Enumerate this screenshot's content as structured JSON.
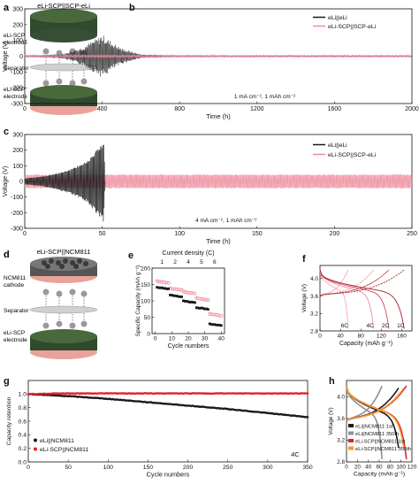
{
  "colors": {
    "black": "#1a1a1a",
    "pink": "#ee8c9d",
    "red": "#e0202a",
    "gray": "#8f8f8f",
    "orange": "#f39a2a",
    "darkred": "#a81e2a",
    "lightpink": "#f2a8b3"
  },
  "panels": {
    "a": {
      "letter": "a",
      "title": "eLi-SCP||SCP-eLi",
      "top_label_1": "eLi-SCP",
      "top_label_2": "electrode",
      "sep_label": "Separator",
      "bot_label_1": "eLi-SCP",
      "bot_label_2": "electrode"
    },
    "d": {
      "letter": "d",
      "title": "eLi-SCP||NCM811",
      "top_label_1": "NCM811",
      "top_label_2": "cathode",
      "sep_label": "Separator",
      "bot_label_1": "eLi-SCP",
      "bot_label_2": "electrode"
    }
  },
  "chart_data": [
    {
      "id": "b",
      "letter": "b",
      "type": "line",
      "xlabel": "Time (h)",
      "ylabel": "Voltage (V)",
      "xlim": [
        0,
        2000
      ],
      "ylim": [
        -300,
        300
      ],
      "xticks": [
        "0",
        "400",
        "800",
        "1200",
        "1600",
        "2000"
      ],
      "yticks": [
        "300",
        "200",
        "100",
        "0",
        "-100",
        "-200",
        "-300"
      ],
      "annotation": "1 mA cm⁻², 1 mAh cm⁻²",
      "series": [
        {
          "name": "eLi||eLi",
          "color": "#1a1a1a",
          "x": [
            0,
            100,
            200,
            300,
            380,
            400,
            450,
            500,
            600,
            700,
            800,
            900,
            1000,
            1500,
            2000
          ],
          "y": [
            5,
            8,
            15,
            60,
            120,
            140,
            90,
            50,
            12,
            8,
            5,
            5,
            4,
            4,
            4
          ]
        },
        {
          "name": "eLi-SCP||SCP-eLi",
          "color": "#ee8c9d",
          "x": [
            0,
            500,
            1000,
            1500,
            2000
          ],
          "y": [
            10,
            10,
            10,
            10,
            10
          ]
        }
      ]
    },
    {
      "id": "c",
      "letter": "c",
      "type": "line",
      "xlabel": "Time (h)",
      "ylabel": "Voltage (V)",
      "xlim": [
        0,
        250
      ],
      "ylim": [
        -300,
        300
      ],
      "xticks": [
        "0",
        "50",
        "100",
        "150",
        "200",
        "250"
      ],
      "yticks": [
        "300",
        "200",
        "100",
        "0",
        "-100",
        "-200",
        "-300"
      ],
      "annotation": "4 mA cm⁻², 1 mAh cm⁻²",
      "series": [
        {
          "name": "eLi||eLi",
          "color": "#1a1a1a",
          "x": [
            0,
            10,
            20,
            30,
            40,
            46,
            50,
            51,
            52
          ],
          "y": [
            20,
            30,
            50,
            80,
            130,
            200,
            250,
            260,
            0
          ]
        },
        {
          "name": "eLi-SCP||SCP-eLi",
          "color": "#ee8c9d",
          "x": [
            0,
            50,
            100,
            150,
            200,
            250
          ],
          "y": [
            45,
            45,
            45,
            45,
            45,
            45
          ]
        }
      ]
    },
    {
      "id": "e",
      "letter": "e",
      "type": "scatter",
      "xlabel": "Cycle numbers",
      "ylabel": "Specific Capacity (mAh g⁻¹)",
      "top_label": "Current density (C)",
      "xlim": [
        -2,
        42
      ],
      "ylim": [
        0,
        200
      ],
      "xticks": [
        "0",
        "10",
        "20",
        "30",
        "40"
      ],
      "yticks": [
        "0",
        "50",
        "100",
        "150",
        "200"
      ],
      "top_ticks": [
        "1",
        "2",
        "4",
        "5",
        "6"
      ],
      "series": [
        {
          "name": "eLi-SCP",
          "color": "#ee8c9d",
          "values": [
            {
              "c": 1,
              "v": 160
            },
            {
              "c": 2,
              "v": 138
            },
            {
              "c": 4,
              "v": 128
            },
            {
              "c": 5,
              "v": 108
            },
            {
              "c": 6,
              "v": 60
            }
          ]
        },
        {
          "name": "eLi",
          "color": "#1a1a1a",
          "values": [
            {
              "c": 1,
              "v": 142
            },
            {
              "c": 2,
              "v": 118
            },
            {
              "c": 4,
              "v": 100
            },
            {
              "c": 5,
              "v": 80
            },
            {
              "c": 6,
              "v": 30
            }
          ]
        }
      ]
    },
    {
      "id": "f",
      "letter": "f",
      "type": "line",
      "xlabel": "Capacity (mAh g⁻¹)",
      "ylabel": "Voltage (V)",
      "xlim": [
        0,
        180
      ],
      "ylim": [
        2.8,
        4.3
      ],
      "xticks": [
        "0",
        "40",
        "80",
        "120",
        "160"
      ],
      "yticks": [
        "2.8",
        "3.2",
        "3.6",
        "4.0"
      ],
      "rate_labels": [
        "6C",
        "4C",
        "2C",
        "1C"
      ],
      "rate_caps": [
        55,
        105,
        135,
        165
      ]
    },
    {
      "id": "g",
      "letter": "g",
      "type": "scatter",
      "xlabel": "Cycle numbers",
      "ylabel": "Capacity retention",
      "xlim": [
        0,
        350
      ],
      "ylim": [
        0,
        1.2
      ],
      "xticks": [
        "0",
        "50",
        "100",
        "150",
        "200",
        "250",
        "300",
        "350"
      ],
      "yticks": [
        "0.0",
        "0.2",
        "0.4",
        "0.6",
        "0.8",
        "1.0"
      ],
      "annotation": "4C",
      "series": [
        {
          "name": "eLi||NCM811",
          "color": "#1a1a1a",
          "x": [
            0,
            50,
            100,
            150,
            200,
            250,
            300,
            350
          ],
          "y": [
            1.0,
            0.97,
            0.93,
            0.88,
            0.83,
            0.78,
            0.72,
            0.66
          ]
        },
        {
          "name": "eLi-SCP||NCM811",
          "color": "#e0202a",
          "x": [
            0,
            50,
            100,
            150,
            200,
            250,
            300,
            350
          ],
          "y": [
            1.0,
            1.01,
            1.01,
            1.01,
            1.01,
            1.01,
            1.01,
            1.01
          ]
        }
      ]
    },
    {
      "id": "h",
      "letter": "h",
      "type": "line",
      "xlabel": "Capacity (mAh g⁻¹)",
      "ylabel": "Voltage (V)",
      "xlim": [
        0,
        120
      ],
      "ylim": [
        2.8,
        4.3
      ],
      "xticks": [
        "0",
        "20",
        "40",
        "60",
        "80",
        "100",
        "120"
      ],
      "yticks": [
        "2.8",
        "3.2",
        "3.6",
        "4.0"
      ],
      "series": [
        {
          "name": "eLi||NCM811 1st",
          "color": "#1a1a1a",
          "cap": 98
        },
        {
          "name": "eLi||NCM811 350th",
          "color": "#8f8f8f",
          "cap": 65
        },
        {
          "name": "eLi-SCP||NCM811 1st",
          "color": "#e0202a",
          "cap": 110
        },
        {
          "name": "eLi-SCP||NCM811 350th",
          "color": "#f39a2a",
          "cap": 108
        }
      ]
    }
  ]
}
